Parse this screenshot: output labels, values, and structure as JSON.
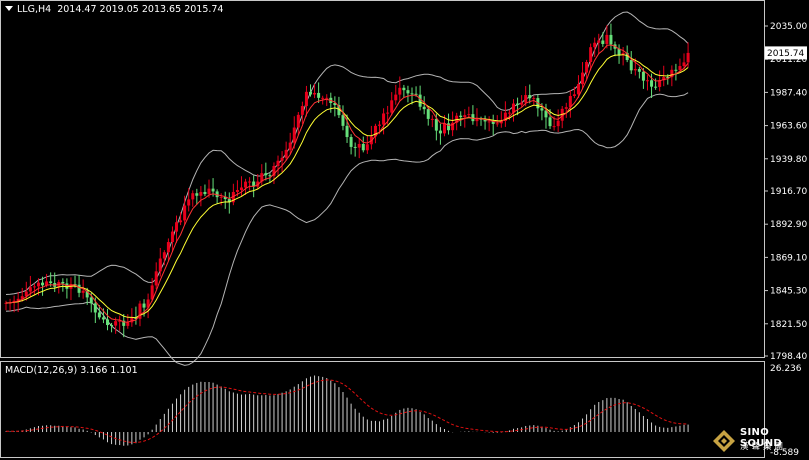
{
  "header": {
    "menu_icon": "triangle-down-icon",
    "symbol": "LLG,H4",
    "open": "2014.47",
    "high": "2019.05",
    "low": "2013.65",
    "close": "2015.74"
  },
  "macd_header": {
    "label": "MACD(12,26,9)",
    "main": "3.166",
    "signal": "1.101"
  },
  "price_axis": {
    "ticks": [
      "2035.00",
      "2011.20",
      "1987.40",
      "1963.60",
      "1939.80",
      "1916.70",
      "1892.90",
      "1869.10",
      "1845.30",
      "1821.50",
      "1798.40"
    ],
    "current": "2015.74"
  },
  "macd_axis": {
    "top": "26.236",
    "bottom": "-8.589"
  },
  "logo": {
    "text": "SINO SOUND",
    "cn": "漢聲集團",
    "icon": "diamond-logo-icon"
  },
  "colors": {
    "bull": "#e8001c",
    "bear": "#66e07a",
    "ma_fast": "#ff3333",
    "ma_slow": "#ffff33",
    "bands": "#b4b4b4",
    "signal": "#e01010"
  },
  "chart_data": [
    {
      "type": "candlestick",
      "title": "LLG,H4",
      "indicators": [
        "bollinger-bands",
        "moving-average-fast",
        "moving-average-slow"
      ],
      "ylim": [
        1798.4,
        2035.0
      ],
      "y_ticks": [
        2035.0,
        2011.2,
        1987.4,
        1963.6,
        1939.8,
        1916.7,
        1892.9,
        1869.1,
        1845.3,
        1821.5,
        1798.4
      ],
      "current_price": 2015.74,
      "close": [
        1836.5,
        1836.8,
        1838.0,
        1839.4,
        1841.3,
        1844.6,
        1847.7,
        1848.3,
        1851.0,
        1849.1,
        1851.9,
        1850.7,
        1848.0,
        1851.5,
        1850.4,
        1846.6,
        1850.0,
        1849.5,
        1843.7,
        1845.2,
        1840.4,
        1836.1,
        1829.6,
        1826.1,
        1824.6,
        1820.6,
        1820.2,
        1823.4,
        1823.7,
        1820.0,
        1822.5,
        1825.7,
        1825.1,
        1836.0,
        1833.1,
        1838.9,
        1849.0,
        1859.1,
        1868.3,
        1872.8,
        1880.1,
        1887.6,
        1894.3,
        1895.6,
        1906.3,
        1910.7,
        1915.1,
        1913.3,
        1916.0,
        1914.5,
        1918.4,
        1916.4,
        1912.3,
        1912.5,
        1910.9,
        1908.6,
        1916.0,
        1917.4,
        1919.2,
        1923.4,
        1923.5,
        1919.8,
        1923.5,
        1929.5,
        1928.0,
        1927.6,
        1934.6,
        1938.4,
        1940.5,
        1946.2,
        1951.4,
        1962.2,
        1971.3,
        1977.6,
        1987.8,
        1985.9,
        1987.0,
        1983.5,
        1983.5,
        1983.5,
        1979.8,
        1978.3,
        1971.1,
        1963.4,
        1955.4,
        1948.3,
        1947.8,
        1950.4,
        1945.9,
        1950.2,
        1955.8,
        1963.4,
        1964.3,
        1972.3,
        1972.9,
        1981.7,
        1985.8,
        1990.7,
        1989.0,
        1986.7,
        1986.4,
        1985.8,
        1977.1,
        1975.4,
        1968.4,
        1968.4,
        1960.0,
        1958.0,
        1965.2,
        1960.3,
        1965.6,
        1970.7,
        1969.7,
        1971.1,
        1971.8,
        1966.8,
        1968.5,
        1968.2,
        1966.6,
        1966.6,
        1964.8,
        1965.2,
        1966.9,
        1972.9,
        1972.9,
        1979.4,
        1978.6,
        1980.1,
        1985.5,
        1983.2,
        1983.3,
        1976.0,
        1974.4,
        1969.5,
        1963.2,
        1963.2,
        1967.1,
        1975.6,
        1976.8,
        1984.8,
        1986.0,
        1993.3,
        2001.6,
        2009.2,
        2019.8,
        2023.0,
        2024.6,
        2022.1,
        2028.6,
        2021.8,
        2018.7,
        2014.3,
        2015.7,
        2010.6,
        2003.2,
        2004.2,
        2002.2,
        1995.8,
        1996.1,
        1991.5,
        1991.3,
        1996.1,
        1998.4,
        1998.3,
        2003.6,
        2003.5,
        2006.3,
        2008.9,
        2015.7
      ]
    },
    {
      "type": "bar+line",
      "title": "MACD(12,26,9)",
      "main_value": 3.166,
      "signal_value": 1.101,
      "ylim": [
        -8.589,
        26.236
      ],
      "main": [
        0.3,
        0.3,
        0.3,
        0.5,
        0.7,
        1.1,
        1.6,
        2.1,
        2.6,
        2.7,
        2.9,
        2.9,
        2.7,
        2.7,
        2.6,
        2.3,
        2.1,
        2.0,
        1.4,
        1.1,
        0.5,
        -0.2,
        -1.3,
        -2.3,
        -3.2,
        -4.4,
        -5.2,
        -5.5,
        -5.6,
        -5.9,
        -5.8,
        -5.3,
        -4.8,
        -3.3,
        -2.3,
        -1.0,
        1.0,
        3.2,
        5.6,
        7.8,
        10.0,
        12.2,
        14.4,
        16.2,
        18.2,
        19.4,
        20.4,
        21.1,
        21.6,
        21.5,
        21.5,
        21.2,
        20.4,
        19.6,
        18.6,
        17.5,
        17.0,
        16.5,
        16.1,
        16.2,
        16.4,
        16.1,
        15.8,
        15.8,
        15.9,
        15.7,
        15.8,
        16.3,
        16.9,
        17.5,
        18.3,
        19.5,
        20.6,
        21.8,
        23.1,
        23.8,
        24.3,
        24.0,
        23.7,
        23.2,
        22.1,
        21.0,
        19.3,
        17.2,
        14.8,
        12.2,
        10.0,
        8.3,
        6.6,
        5.4,
        4.8,
        4.8,
        4.6,
        5.3,
        5.7,
        6.9,
        8.3,
        9.5,
        10.1,
        10.4,
        10.2,
        9.8,
        8.6,
        7.6,
        6.0,
        4.9,
        3.4,
        2.1,
        1.3,
        0.5,
        -0.1,
        0.0,
        0.1,
        0.2,
        0.3,
        0.1,
        0.1,
        0.0,
        -0.1,
        -0.2,
        -0.3,
        -0.3,
        -0.2,
        0.3,
        0.7,
        1.4,
        1.7,
        2.0,
        2.6,
        2.8,
        3.0,
        2.7,
        2.3,
        1.7,
        1.0,
        0.5,
        0.3,
        0.6,
        1.1,
        2.1,
        3.0,
        4.2,
        5.8,
        7.6,
        9.8,
        11.7,
        12.9,
        13.7,
        14.6,
        14.7,
        14.7,
        14.2,
        13.9,
        12.8,
        11.2,
        9.9,
        8.5,
        6.9,
        5.6,
        4.1,
        2.8,
        2.2,
        1.9,
        1.8,
        2.1,
        2.4,
        2.7,
        3.1,
        3.2
      ]
    }
  ]
}
